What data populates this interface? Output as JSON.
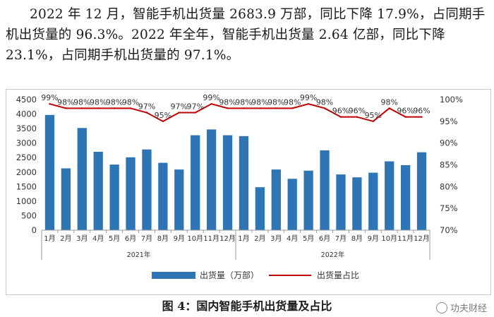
{
  "intro": {
    "text": "2022 年 12 月，智能手机出货量 2683.9 万部，同比下降 17.9%，占同期手机出货量的 96.3%。2022 年全年，智能手机出货量 2.64 亿部，同比下降 23.1%，占同期手机出货量的 97.1%。"
  },
  "caption": "图 4：国内智能手机出货量及占比",
  "watermark": "功夫财经",
  "colors": {
    "bar": "#2e75b6",
    "line": "#c00000",
    "axis": "#999999",
    "grid": "#e0e0e0"
  },
  "chart_data": {
    "type": "bar",
    "categories": [
      "1月",
      "2月",
      "3月",
      "4月",
      "5月",
      "6月",
      "7月",
      "8月",
      "9月",
      "10月",
      "11月",
      "12月",
      "1月",
      "2月",
      "3月",
      "4月",
      "5月",
      "6月",
      "7月",
      "8月",
      "9月",
      "10月",
      "11月",
      "12月"
    ],
    "groups": [
      {
        "label": "2021年",
        "count": 12
      },
      {
        "label": "2022年",
        "count": 12
      }
    ],
    "series": [
      {
        "name": "出货量（万部）",
        "type": "bar",
        "axis": "left",
        "values": [
          3970,
          2130,
          3520,
          2700,
          2260,
          2510,
          2780,
          2320,
          2090,
          3270,
          3470,
          3270,
          3240,
          1480,
          2090,
          1770,
          2050,
          2750,
          1920,
          1820,
          1980,
          2370,
          2240,
          2684
        ]
      },
      {
        "name": "出货量占比",
        "type": "line",
        "axis": "right",
        "values": [
          99,
          98,
          98,
          98,
          98,
          98,
          97,
          95,
          97,
          97,
          99,
          98,
          98,
          98,
          98,
          98,
          99,
          98,
          96,
          96,
          95,
          98,
          96,
          96
        ],
        "labels": [
          "99%",
          "98%",
          "98%",
          "98%",
          "98%",
          "98%",
          "97%",
          "95%",
          "97%",
          "97%",
          "99%",
          "98%",
          "98%",
          "98%",
          "98%",
          "98%",
          "99%",
          "98%",
          "96%",
          "96%",
          "95%",
          "98%",
          "96%",
          "96%"
        ]
      }
    ],
    "yleft": {
      "min": 0,
      "max": 4500,
      "ticks": [
        "0",
        "500",
        "1000",
        "1500",
        "2000",
        "2500",
        "3000",
        "3500",
        "4000",
        "4500"
      ]
    },
    "yright": {
      "min": 70,
      "max": 100,
      "ticks": [
        "70%",
        "75%",
        "80%",
        "85%",
        "90%",
        "95%",
        "100%"
      ]
    },
    "legend": {
      "placement": "bottom"
    }
  }
}
